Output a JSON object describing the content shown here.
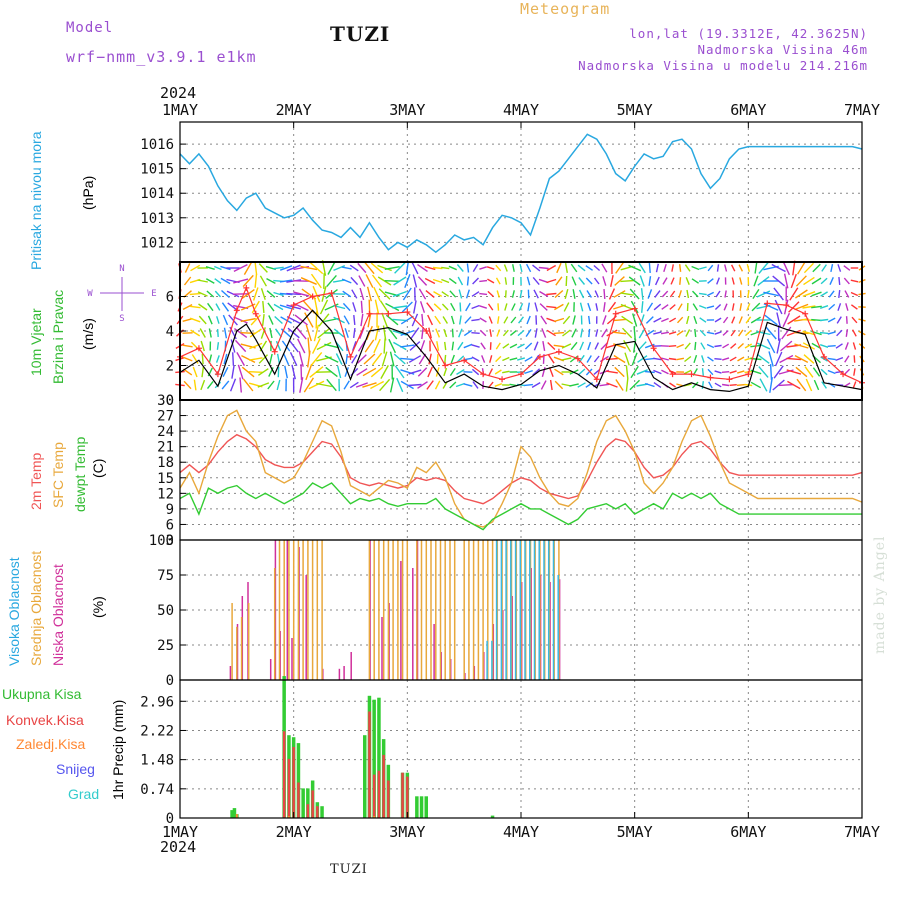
{
  "header": {
    "model_label": "Model",
    "model_name": "wrf−nmm_v3.9.1  e1km",
    "station": "TUZI",
    "title": "Meteogram",
    "coords": "lon,lat (19.3312E, 42.3625N)",
    "altitude": "Nadmorska Visina 46m",
    "model_altitude": "Nadmorska Visina u modelu 214.216m"
  },
  "footer": {
    "year": "2024",
    "station": "TUZI",
    "signature": "made by Angel"
  },
  "x_axis": {
    "year": "2024",
    "ticks": [
      "1MAY",
      "2MAY",
      "3MAY",
      "4MAY",
      "5MAY",
      "6MAY",
      "7MAY"
    ],
    "range_hours": [
      0,
      144
    ]
  },
  "colors": {
    "pressure": "#29a8e0",
    "temp2m": "#f05555",
    "sfc_temp": "#e8a83c",
    "dewpt": "#33cc33",
    "low_cloud": "#d0309a",
    "mid_cloud": "#e8a83c",
    "high_cloud": "#3bb8e0",
    "total_precip": "#33cc33",
    "conv_precip": "#e84545",
    "frozen_precip": "#ff8833",
    "snow": "#5555ee",
    "hail": "#33cccc",
    "wind_speed": "#000000",
    "wind_gust": "#ff3333"
  },
  "labels": {
    "pressure": [
      "Pritisak na nivou mora",
      "(hPa)"
    ],
    "wind": [
      "10m Vjetar",
      "Brzina i Pravac",
      "(m/s)"
    ],
    "wind_compass": [
      "N",
      "W",
      "E",
      "S"
    ],
    "temp": [
      "2m Temp",
      "SFC Temp",
      "dewpt Temp",
      "(C)"
    ],
    "cloud": [
      "Visoka Oblacnost",
      "Srednja Oblacnost",
      "Niska Oblacnost",
      "(%)"
    ],
    "precip": [
      "Ukupna Kisa",
      "Konvek.Kisa",
      "Zaledj.Kisa",
      "Snijeg",
      "Grad",
      "1hr Precip (mm)"
    ]
  },
  "chart_data": [
    {
      "type": "line",
      "name": "pressure",
      "ylim": [
        1011.2,
        1016.9
      ],
      "yticks": [
        "1012",
        "1013",
        "1014",
        "1015",
        "1016"
      ],
      "x": [
        0,
        2,
        4,
        6,
        8,
        10,
        12,
        14,
        16,
        18,
        20,
        22,
        24,
        26,
        28,
        30,
        32,
        34,
        36,
        38,
        40,
        42,
        44,
        46,
        48,
        50,
        52,
        54,
        56,
        58,
        60,
        62,
        64,
        66,
        68,
        70,
        72,
        74,
        76,
        78,
        80,
        82,
        84,
        86,
        88,
        90,
        92,
        94,
        96,
        98,
        100,
        102,
        104,
        106,
        108,
        110,
        112,
        114,
        116,
        118,
        120,
        122,
        124,
        126,
        128,
        130,
        132,
        134,
        136,
        138,
        140,
        142,
        144
      ],
      "values": [
        1015.6,
        1015.2,
        1015.6,
        1015.1,
        1014.3,
        1013.7,
        1013.3,
        1013.8,
        1014.0,
        1013.4,
        1013.2,
        1013.0,
        1013.1,
        1013.4,
        1012.9,
        1012.5,
        1012.4,
        1012.2,
        1012.6,
        1012.2,
        1012.8,
        1012.2,
        1011.7,
        1012.0,
        1011.8,
        1012.1,
        1011.9,
        1011.6,
        1011.9,
        1012.3,
        1012.1,
        1012.2,
        1011.9,
        1012.6,
        1013.1,
        1013.0,
        1012.8,
        1012.3,
        1013.4,
        1014.6,
        1014.9,
        1015.4,
        1015.9,
        1016.4,
        1016.2,
        1015.6,
        1014.8,
        1014.5,
        1015.1,
        1015.6,
        1015.4,
        1015.5,
        1016.1,
        1016.2,
        1015.8,
        1014.8,
        1014.2,
        1014.6,
        1015.4,
        1015.8,
        1015.9,
        1015.9,
        1015.9,
        1015.9,
        1015.9,
        1015.9,
        1015.9,
        1015.9,
        1015.9,
        1015.9,
        1015.9,
        1015.9,
        1015.8
      ]
    },
    {
      "type": "line",
      "name": "wind",
      "ylim": [
        0,
        8
      ],
      "yticks": [
        "0",
        "2",
        "4",
        "6"
      ],
      "x": [
        0,
        4,
        8,
        12,
        14,
        16,
        20,
        24,
        28,
        32,
        36,
        40,
        44,
        48,
        52,
        56,
        60,
        64,
        68,
        72,
        76,
        80,
        84,
        88,
        92,
        96,
        100,
        104,
        108,
        112,
        116,
        120,
        124,
        128,
        132,
        136,
        140,
        144
      ],
      "speed": [
        1.6,
        2.3,
        0.8,
        4.0,
        4.4,
        3.5,
        1.5,
        4.0,
        5.2,
        4.0,
        1.2,
        4.0,
        4.2,
        3.8,
        2.5,
        1.0,
        1.5,
        0.8,
        0.6,
        0.9,
        1.7,
        2.0,
        1.5,
        0.7,
        3.2,
        3.4,
        1.3,
        0.6,
        1.0,
        0.6,
        0.5,
        0.8,
        4.5,
        4.1,
        3.8,
        1.0,
        0.8,
        0.6
      ],
      "gust": [
        2.5,
        3.0,
        1.5,
        5.2,
        6.5,
        5.0,
        2.8,
        5.5,
        6.0,
        6.2,
        2.5,
        5.0,
        5.0,
        5.1,
        4.0,
        2.0,
        2.3,
        1.5,
        1.2,
        1.5,
        2.5,
        2.8,
        2.4,
        1.2,
        5.0,
        5.3,
        3.0,
        1.5,
        1.5,
        1.3,
        1.2,
        1.5,
        5.6,
        5.5,
        5.0,
        2.5,
        1.5,
        1.0
      ]
    },
    {
      "type": "line",
      "name": "temperature",
      "ylim": [
        3,
        30
      ],
      "yticks": [
        "3",
        "6",
        "9",
        "12",
        "15",
        "18",
        "21",
        "24",
        "27",
        "30"
      ],
      "x": [
        0,
        2,
        4,
        6,
        8,
        10,
        12,
        14,
        16,
        18,
        20,
        22,
        24,
        26,
        28,
        30,
        32,
        34,
        36,
        38,
        40,
        42,
        44,
        46,
        48,
        50,
        52,
        54,
        56,
        58,
        60,
        62,
        64,
        66,
        68,
        70,
        72,
        74,
        76,
        78,
        80,
        82,
        84,
        86,
        88,
        90,
        92,
        94,
        96,
        98,
        100,
        102,
        104,
        106,
        108,
        110,
        112,
        114,
        116,
        118,
        120,
        122,
        124,
        126,
        128,
        130,
        132,
        134,
        136,
        138,
        140,
        142,
        144
      ],
      "series": [
        {
          "name": "2m Temp",
          "values": [
            16,
            17.5,
            16,
            17.5,
            20,
            22,
            23.3,
            22.5,
            21,
            18.5,
            17.5,
            17,
            17,
            18,
            20,
            22,
            21.5,
            19,
            15,
            14,
            13.5,
            14,
            13.5,
            13,
            13.5,
            15,
            14.5,
            15,
            14.5,
            12.5,
            11,
            10.5,
            10,
            11,
            12.5,
            14,
            15,
            14.5,
            13,
            12,
            11.5,
            11,
            11.5,
            14.5,
            18,
            21,
            22.5,
            22,
            20,
            17,
            15,
            15.5,
            17,
            19.5,
            21.5,
            22,
            20.5,
            18,
            16,
            15.5,
            15.5,
            15.5,
            15.5,
            15.5,
            15.5,
            15.5,
            15.5,
            15.5,
            15.5,
            15.5,
            15.5,
            15.5,
            16
          ]
        },
        {
          "name": "SFC Temp",
          "values": [
            13,
            16,
            12,
            18,
            23,
            27,
            28,
            24,
            22,
            16,
            15,
            14,
            15,
            18,
            22,
            26,
            25,
            20,
            13.5,
            12.5,
            11.5,
            13,
            14.5,
            14,
            13,
            17,
            16,
            18,
            15,
            10,
            7,
            6,
            5.5,
            6.5,
            10,
            14,
            21,
            19,
            15,
            12,
            10,
            9.5,
            11,
            16,
            22,
            26,
            27,
            24,
            20,
            14,
            12,
            14,
            17,
            22,
            26,
            27,
            23,
            18,
            14,
            13,
            12,
            11,
            11,
            11,
            11,
            11,
            11,
            11,
            11,
            11,
            11,
            11,
            10.3
          ]
        },
        {
          "name": "dewpt Temp",
          "values": [
            11,
            12,
            8,
            13,
            12,
            13,
            13.5,
            12,
            11,
            12,
            11,
            10,
            11,
            12,
            14,
            13,
            14,
            12,
            10,
            11,
            10.5,
            11,
            10,
            9.5,
            10,
            10,
            10,
            11,
            9,
            8,
            7,
            6,
            5,
            7,
            8,
            9,
            10,
            9,
            9,
            8,
            7,
            6,
            7,
            9,
            9.5,
            10,
            9,
            10,
            8,
            9,
            10,
            9,
            12,
            11,
            12,
            11,
            12,
            10,
            9,
            8,
            8,
            8,
            8,
            8,
            8,
            8,
            8,
            8,
            8,
            8,
            8,
            8,
            8
          ]
        }
      ]
    },
    {
      "type": "bar",
      "name": "cloud_cover",
      "ylim": [
        0,
        100
      ],
      "yticks": [
        "0",
        "25",
        "50",
        "75",
        "100"
      ],
      "series": [
        {
          "name": "Niska Oblacnost",
          "x": [
            10.5,
            12,
            13,
            14.2,
            19,
            20,
            21,
            22.5,
            23.5,
            25,
            26.5,
            30,
            33.5,
            34.5,
            36,
            40,
            42.5,
            44,
            46.5,
            49,
            50,
            53.5,
            55,
            57,
            60,
            62,
            64,
            66,
            68,
            70,
            72,
            74,
            76,
            78,
            80
          ],
          "values": [
            10,
            40,
            60,
            70,
            15,
            100,
            35,
            100,
            30,
            95,
            75,
            8,
            8,
            10,
            20,
            100,
            45,
            55,
            85,
            80,
            100,
            40,
            20,
            15,
            5,
            10,
            20,
            40,
            50,
            60,
            70,
            80,
            75,
            70,
            72
          ]
        },
        {
          "name": "Srednja Oblacnost",
          "x": [
            11,
            12,
            13,
            14.5,
            20,
            21,
            22,
            23,
            24,
            25,
            26,
            27,
            28,
            29,
            30,
            40,
            41,
            42,
            43,
            44,
            45,
            46,
            47,
            48,
            50,
            51,
            52,
            53,
            54,
            55,
            56,
            57,
            58,
            60,
            61,
            62,
            63,
            64,
            65,
            66,
            67,
            68,
            69,
            70,
            71,
            72,
            73,
            74,
            75,
            76,
            77,
            78,
            79,
            80
          ],
          "values": [
            55,
            38,
            45,
            55,
            80,
            100,
            100,
            100,
            100,
            100,
            100,
            100,
            100,
            100,
            100,
            100,
            100,
            100,
            100,
            100,
            100,
            100,
            100,
            100,
            100,
            100,
            100,
            100,
            100,
            100,
            100,
            100,
            100,
            100,
            100,
            100,
            100,
            100,
            100,
            100,
            100,
            100,
            100,
            100,
            100,
            100,
            100,
            100,
            100,
            100,
            100,
            100,
            100,
            100
          ]
        },
        {
          "name": "Visoka Oblacnost",
          "x": [
            65,
            66,
            67,
            68,
            69,
            70,
            71,
            72,
            73,
            74,
            75,
            76,
            77,
            78,
            79,
            80
          ],
          "values": [
            28,
            28,
            100,
            100,
            100,
            100,
            100,
            100,
            100,
            100,
            100,
            100,
            100,
            100,
            100,
            75
          ]
        }
      ]
    },
    {
      "type": "bar",
      "name": "precipitation",
      "ylim": [
        0,
        3.5
      ],
      "yticks": [
        "0",
        "0.74",
        "1.48",
        "2.22",
        "2.96"
      ],
      "series": [
        {
          "name": "Ukupna Kisa",
          "x": [
            11,
            11.5,
            12,
            22,
            23,
            24,
            25,
            26,
            27,
            28,
            29,
            30,
            39,
            40,
            41,
            42,
            43,
            44,
            47,
            48,
            50,
            51,
            52,
            66
          ],
          "values": [
            0.2,
            0.25,
            0.1,
            3.6,
            2.1,
            2.05,
            1.9,
            0.75,
            0.75,
            0.95,
            0.4,
            0.3,
            2.1,
            3.1,
            3.0,
            3.05,
            2.0,
            1.35,
            1.15,
            1.15,
            0.55,
            0.55,
            0.55,
            0.06
          ]
        },
        {
          "name": "Konvek.Kisa",
          "x": [
            22,
            23,
            24,
            25,
            27,
            28,
            29,
            40,
            41,
            42,
            43,
            44,
            47,
            48
          ],
          "values": [
            2.2,
            1.5,
            1.8,
            0.9,
            0.35,
            0.7,
            0.3,
            2.7,
            1.1,
            1.2,
            1.6,
            0.95,
            1.15,
            1.05
          ]
        },
        {
          "name": "Zaledj.Kisa",
          "x": [
            12,
            23,
            41
          ],
          "values": [
            0.1,
            0.05,
            0.05
          ]
        },
        {
          "name": "Snijeg",
          "x": [],
          "values": []
        },
        {
          "name": "Grad",
          "x": [],
          "values": []
        }
      ]
    }
  ]
}
